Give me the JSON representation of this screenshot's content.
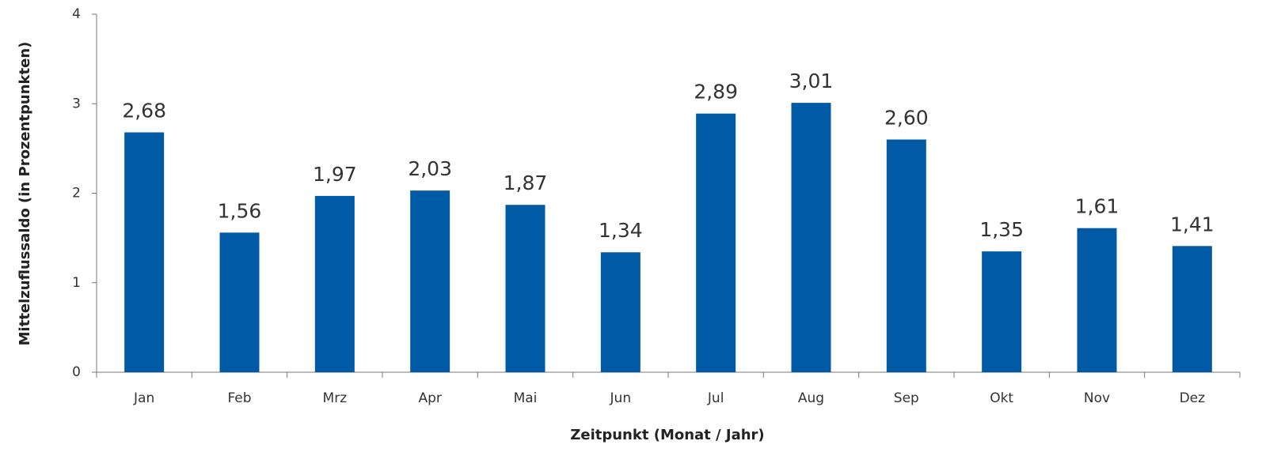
{
  "chart_data": {
    "type": "bar",
    "x_label": "Zeitpunkt (Monat / Jahr)",
    "y_label": "Mittelzuflussaldo (in Prozentpunkten)",
    "categories": [
      "Jan",
      "Feb",
      "Mrz",
      "Apr",
      "Mai",
      "Jun",
      "Jul",
      "Aug",
      "Sep",
      "Okt",
      "Nov",
      "Dez"
    ],
    "values": [
      2.68,
      1.56,
      1.97,
      2.03,
      1.87,
      1.34,
      2.89,
      3.01,
      2.6,
      1.35,
      1.61,
      1.41
    ],
    "value_labels": [
      "2,68",
      "1,56",
      "1,97",
      "2,03",
      "1,87",
      "1,34",
      "2,89",
      "3,01",
      "2,60",
      "1,35",
      "1,61",
      "1,41"
    ],
    "color": "#005aa6",
    "ylim": [
      0,
      4
    ],
    "yticks": [
      0,
      1,
      2,
      3,
      4
    ],
    "grid": false
  }
}
